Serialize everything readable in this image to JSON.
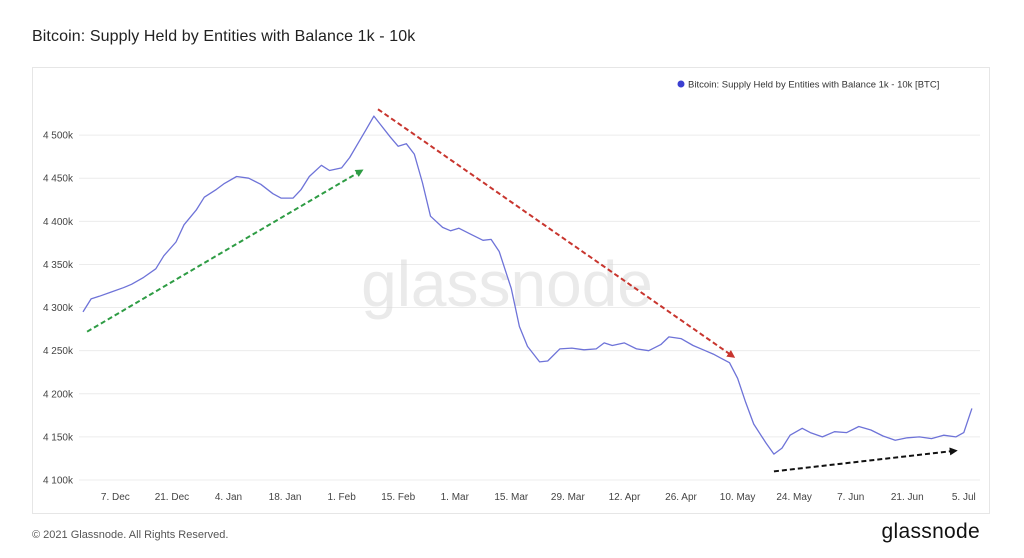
{
  "title": "Bitcoin: Supply Held by Entities with Balance 1k - 10k",
  "footer": {
    "copyright": "© 2021 Glassnode. All Rights Reserved.",
    "brand": "glassnode"
  },
  "watermark": "glassnode",
  "colors": {
    "series": "#6e73d8",
    "legend_dot": "#3b3fd1",
    "arrow_up": "#2e9c44",
    "arrow_down": "#c8352e",
    "arrow_flat": "#111111",
    "grid": "#ececec"
  },
  "chart_data": {
    "type": "line",
    "ylabel": "",
    "xlabel": "",
    "ylim": [
      4100000,
      4550000
    ],
    "grid": true,
    "legend_position": "top-right",
    "y_ticks": [
      {
        "value": 4100000,
        "label": "4 100k"
      },
      {
        "value": 4150000,
        "label": "4 150k"
      },
      {
        "value": 4200000,
        "label": "4 200k"
      },
      {
        "value": 4250000,
        "label": "4 250k"
      },
      {
        "value": 4300000,
        "label": "4 300k"
      },
      {
        "value": 4350000,
        "label": "4 350k"
      },
      {
        "value": 4400000,
        "label": "4 400k"
      },
      {
        "value": 4450000,
        "label": "4 450k"
      },
      {
        "value": 4500000,
        "label": "4 500k"
      }
    ],
    "x_ticks": [
      {
        "date": "2020-12-07",
        "label": "7. Dec"
      },
      {
        "date": "2020-12-21",
        "label": "21. Dec"
      },
      {
        "date": "2021-01-04",
        "label": "4. Jan"
      },
      {
        "date": "2021-01-18",
        "label": "18. Jan"
      },
      {
        "date": "2021-02-01",
        "label": "1. Feb"
      },
      {
        "date": "2021-02-15",
        "label": "15. Feb"
      },
      {
        "date": "2021-03-01",
        "label": "1. Mar"
      },
      {
        "date": "2021-03-15",
        "label": "15. Mar"
      },
      {
        "date": "2021-03-29",
        "label": "29. Mar"
      },
      {
        "date": "2021-04-12",
        "label": "12. Apr"
      },
      {
        "date": "2021-04-26",
        "label": "26. Apr"
      },
      {
        "date": "2021-05-10",
        "label": "10. May"
      },
      {
        "date": "2021-05-24",
        "label": "24. May"
      },
      {
        "date": "2021-06-07",
        "label": "7. Jun"
      },
      {
        "date": "2021-06-21",
        "label": "21. Jun"
      },
      {
        "date": "2021-07-05",
        "label": "5. Jul"
      }
    ],
    "xlim": [
      "2020-11-28",
      "2021-07-09"
    ],
    "series": [
      {
        "name": "Bitcoin: Supply Held by Entities with Balance 1k - 10k [BTC]",
        "points": [
          {
            "x": "2020-11-29",
            "y": 4295000
          },
          {
            "x": "2020-12-01",
            "y": 4310000
          },
          {
            "x": "2020-12-03",
            "y": 4313000
          },
          {
            "x": "2020-12-06",
            "y": 4318000
          },
          {
            "x": "2020-12-09",
            "y": 4323000
          },
          {
            "x": "2020-12-11",
            "y": 4327000
          },
          {
            "x": "2020-12-14",
            "y": 4335000
          },
          {
            "x": "2020-12-17",
            "y": 4345000
          },
          {
            "x": "2020-12-19",
            "y": 4360000
          },
          {
            "x": "2020-12-22",
            "y": 4376000
          },
          {
            "x": "2020-12-24",
            "y": 4396000
          },
          {
            "x": "2020-12-27",
            "y": 4413000
          },
          {
            "x": "2020-12-29",
            "y": 4428000
          },
          {
            "x": "2021-01-01",
            "y": 4437000
          },
          {
            "x": "2021-01-03",
            "y": 4444000
          },
          {
            "x": "2021-01-06",
            "y": 4452000
          },
          {
            "x": "2021-01-09",
            "y": 4450000
          },
          {
            "x": "2021-01-12",
            "y": 4443000
          },
          {
            "x": "2021-01-15",
            "y": 4432000
          },
          {
            "x": "2021-01-17",
            "y": 4427000
          },
          {
            "x": "2021-01-20",
            "y": 4427000
          },
          {
            "x": "2021-01-22",
            "y": 4437000
          },
          {
            "x": "2021-01-24",
            "y": 4452000
          },
          {
            "x": "2021-01-27",
            "y": 4465000
          },
          {
            "x": "2021-01-29",
            "y": 4459000
          },
          {
            "x": "2021-02-01",
            "y": 4462000
          },
          {
            "x": "2021-02-03",
            "y": 4474000
          },
          {
            "x": "2021-02-05",
            "y": 4490000
          },
          {
            "x": "2021-02-07",
            "y": 4506000
          },
          {
            "x": "2021-02-09",
            "y": 4522000
          },
          {
            "x": "2021-02-11",
            "y": 4510000
          },
          {
            "x": "2021-02-13",
            "y": 4498000
          },
          {
            "x": "2021-02-15",
            "y": 4487000
          },
          {
            "x": "2021-02-17",
            "y": 4490000
          },
          {
            "x": "2021-02-19",
            "y": 4478000
          },
          {
            "x": "2021-02-21",
            "y": 4445000
          },
          {
            "x": "2021-02-23",
            "y": 4406000
          },
          {
            "x": "2021-02-26",
            "y": 4393000
          },
          {
            "x": "2021-02-28",
            "y": 4389000
          },
          {
            "x": "2021-03-02",
            "y": 4392000
          },
          {
            "x": "2021-03-05",
            "y": 4385000
          },
          {
            "x": "2021-03-08",
            "y": 4378000
          },
          {
            "x": "2021-03-10",
            "y": 4379000
          },
          {
            "x": "2021-03-12",
            "y": 4365000
          },
          {
            "x": "2021-03-15",
            "y": 4322000
          },
          {
            "x": "2021-03-17",
            "y": 4278000
          },
          {
            "x": "2021-03-19",
            "y": 4255000
          },
          {
            "x": "2021-03-22",
            "y": 4237000
          },
          {
            "x": "2021-03-24",
            "y": 4238000
          },
          {
            "x": "2021-03-27",
            "y": 4252000
          },
          {
            "x": "2021-03-30",
            "y": 4253000
          },
          {
            "x": "2021-04-02",
            "y": 4251000
          },
          {
            "x": "2021-04-05",
            "y": 4252000
          },
          {
            "x": "2021-04-07",
            "y": 4259000
          },
          {
            "x": "2021-04-09",
            "y": 4256000
          },
          {
            "x": "2021-04-12",
            "y": 4259000
          },
          {
            "x": "2021-04-15",
            "y": 4252000
          },
          {
            "x": "2021-04-18",
            "y": 4250000
          },
          {
            "x": "2021-04-21",
            "y": 4257000
          },
          {
            "x": "2021-04-23",
            "y": 4266000
          },
          {
            "x": "2021-04-26",
            "y": 4264000
          },
          {
            "x": "2021-04-29",
            "y": 4256000
          },
          {
            "x": "2021-05-02",
            "y": 4250000
          },
          {
            "x": "2021-05-04",
            "y": 4246000
          },
          {
            "x": "2021-05-06",
            "y": 4241000
          },
          {
            "x": "2021-05-08",
            "y": 4236000
          },
          {
            "x": "2021-05-10",
            "y": 4218000
          },
          {
            "x": "2021-05-12",
            "y": 4190000
          },
          {
            "x": "2021-05-14",
            "y": 4165000
          },
          {
            "x": "2021-05-17",
            "y": 4143000
          },
          {
            "x": "2021-05-19",
            "y": 4130000
          },
          {
            "x": "2021-05-21",
            "y": 4137000
          },
          {
            "x": "2021-05-23",
            "y": 4152000
          },
          {
            "x": "2021-05-26",
            "y": 4160000
          },
          {
            "x": "2021-05-28",
            "y": 4155000
          },
          {
            "x": "2021-05-31",
            "y": 4150000
          },
          {
            "x": "2021-06-03",
            "y": 4156000
          },
          {
            "x": "2021-06-06",
            "y": 4155000
          },
          {
            "x": "2021-06-09",
            "y": 4162000
          },
          {
            "x": "2021-06-12",
            "y": 4158000
          },
          {
            "x": "2021-06-15",
            "y": 4151000
          },
          {
            "x": "2021-06-18",
            "y": 4146000
          },
          {
            "x": "2021-06-21",
            "y": 4149000
          },
          {
            "x": "2021-06-24",
            "y": 4150000
          },
          {
            "x": "2021-06-27",
            "y": 4148000
          },
          {
            "x": "2021-06-30",
            "y": 4152000
          },
          {
            "x": "2021-07-03",
            "y": 4150000
          },
          {
            "x": "2021-07-05",
            "y": 4155000
          },
          {
            "x": "2021-07-07",
            "y": 4183000
          }
        ]
      }
    ],
    "annotations": [
      {
        "type": "arrow",
        "color": "arrow_up",
        "from": {
          "x": "2020-11-30",
          "y": 4272000
        },
        "to": {
          "x": "2021-02-06",
          "y": 4459000
        }
      },
      {
        "type": "arrow",
        "color": "arrow_down",
        "from": {
          "x": "2021-02-10",
          "y": 4530000
        },
        "to": {
          "x": "2021-05-09",
          "y": 4243000
        }
      },
      {
        "type": "arrow",
        "color": "arrow_flat",
        "from": {
          "x": "2021-05-19",
          "y": 4110000
        },
        "to": {
          "x": "2021-07-03",
          "y": 4134000
        }
      }
    ]
  }
}
